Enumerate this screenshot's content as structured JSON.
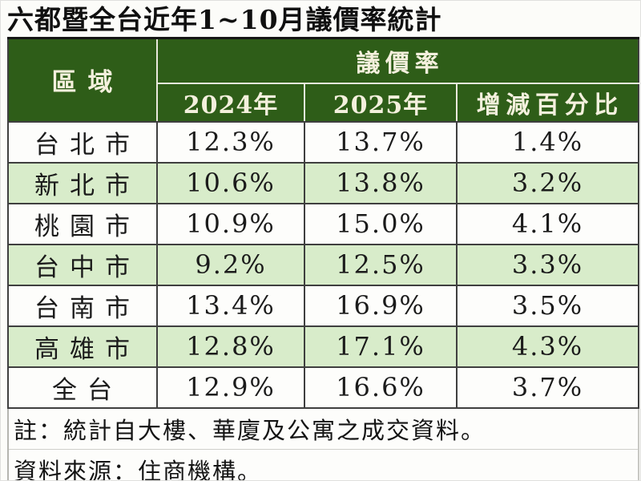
{
  "title": "六都暨全台近年1~10月議價率統計",
  "chart_data": {
    "type": "table",
    "title": "六都暨全台近年1~10月議價率統計",
    "group_header": "議價率",
    "columns": [
      "區域",
      "2024年",
      "2025年",
      "增減百分比"
    ],
    "rows": [
      [
        "台北市",
        "12.3%",
        "13.7%",
        "1.4%"
      ],
      [
        "新北市",
        "10.6%",
        "13.8%",
        "3.2%"
      ],
      [
        "桃園市",
        "10.9%",
        "15.0%",
        "4.1%"
      ],
      [
        "台中市",
        "9.2%",
        "12.5%",
        "3.3%"
      ],
      [
        "台南市",
        "13.4%",
        "16.9%",
        "3.5%"
      ],
      [
        "高雄市",
        "12.8%",
        "17.1%",
        "4.3%"
      ],
      [
        "全台",
        "12.9%",
        "16.6%",
        "3.7%"
      ]
    ],
    "notes": [
      "註：統計自大樓、華廈及公寓之成交資料。",
      "資料來源：住商機構。"
    ]
  },
  "colors": {
    "header_bg": "#2e5d18",
    "header_text": "#f4f0dd",
    "row_alt_bg": "#d8ecca"
  }
}
